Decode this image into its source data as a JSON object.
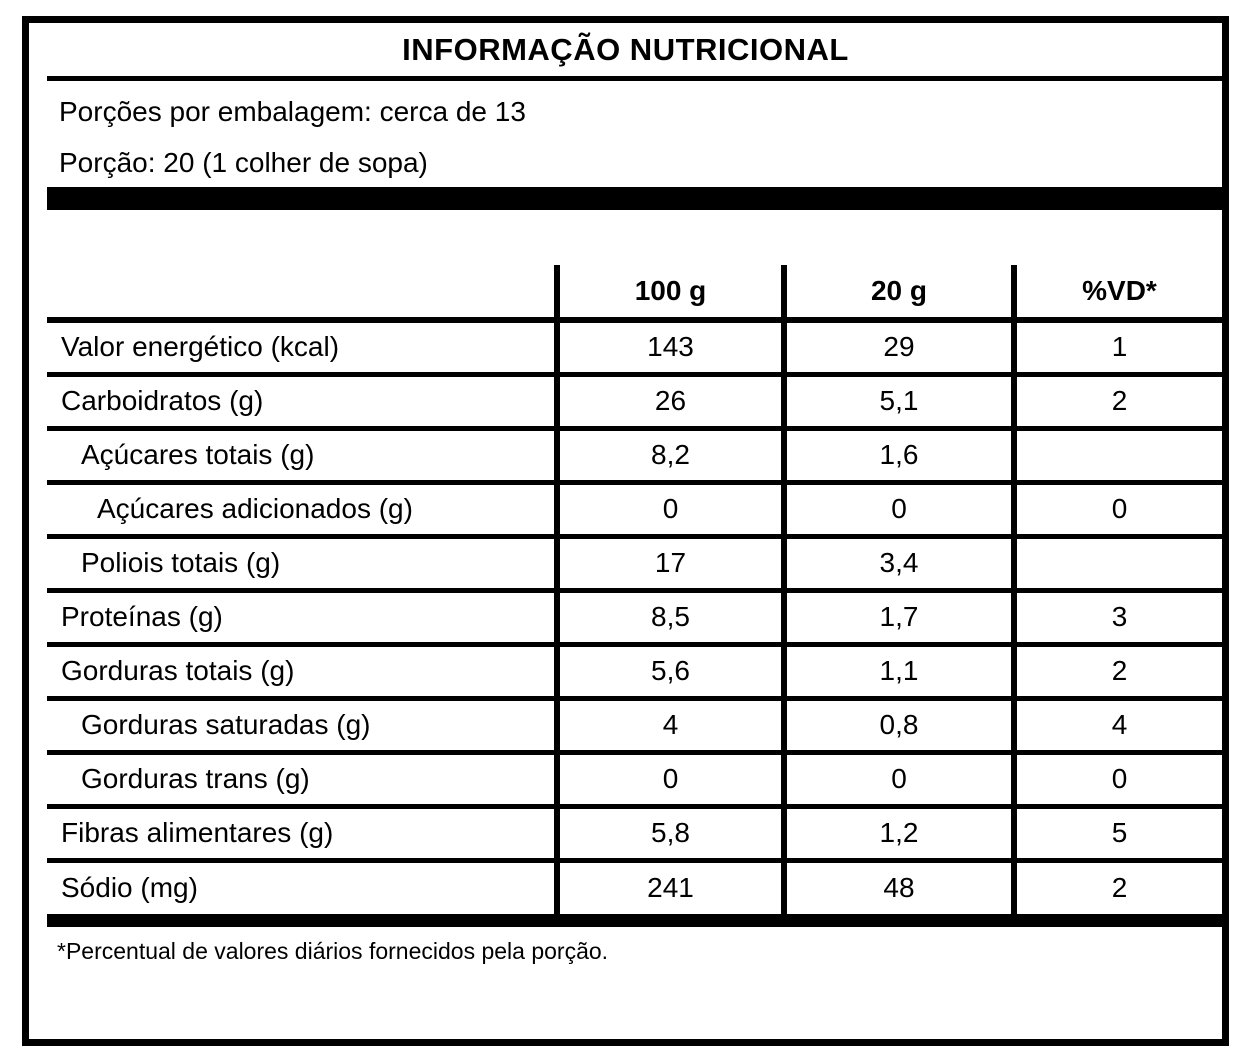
{
  "label": {
    "title": "INFORMAÇÃO NUTRICIONAL",
    "servings_per_package": "Porções por embalagem: cerca de 13",
    "serving_size": "Porção: 20 (1 colher de sopa)",
    "footnote": "*Percentual de valores diários fornecidos pela porção."
  },
  "colors": {
    "ink": "#000000",
    "background": "#ffffff"
  },
  "table": {
    "columns": [
      "",
      "100 g",
      "20 g",
      "%VD*"
    ],
    "rows": [
      {
        "name": "Valor energético (kcal)",
        "indent": 0,
        "per100": "143",
        "per20": "29",
        "vd": "1"
      },
      {
        "name": "Carboidratos (g)",
        "indent": 0,
        "per100": "26",
        "per20": "5,1",
        "vd": "2"
      },
      {
        "name": "Açúcares totais (g)",
        "indent": 1,
        "per100": "8,2",
        "per20": "1,6",
        "vd": ""
      },
      {
        "name": "Açúcares adicionados (g)",
        "indent": 2,
        "per100": "0",
        "per20": "0",
        "vd": "0"
      },
      {
        "name": "Poliois totais (g)",
        "indent": 1,
        "per100": "17",
        "per20": "3,4",
        "vd": ""
      },
      {
        "name": "Proteínas (g)",
        "indent": 0,
        "per100": "8,5",
        "per20": "1,7",
        "vd": "3"
      },
      {
        "name": "Gorduras totais (g)",
        "indent": 0,
        "per100": "5,6",
        "per20": "1,1",
        "vd": "2"
      },
      {
        "name": "Gorduras saturadas (g)",
        "indent": 1,
        "per100": "4",
        "per20": "0,8",
        "vd": "4"
      },
      {
        "name": "Gorduras trans (g)",
        "indent": 1,
        "per100": "0",
        "per20": "0",
        "vd": "0"
      },
      {
        "name": "Fibras alimentares (g)",
        "indent": 0,
        "per100": "5,8",
        "per20": "1,2",
        "vd": "5"
      },
      {
        "name": "Sódio (mg)",
        "indent": 0,
        "per100": "241",
        "per20": "48",
        "vd": "2"
      }
    ]
  }
}
